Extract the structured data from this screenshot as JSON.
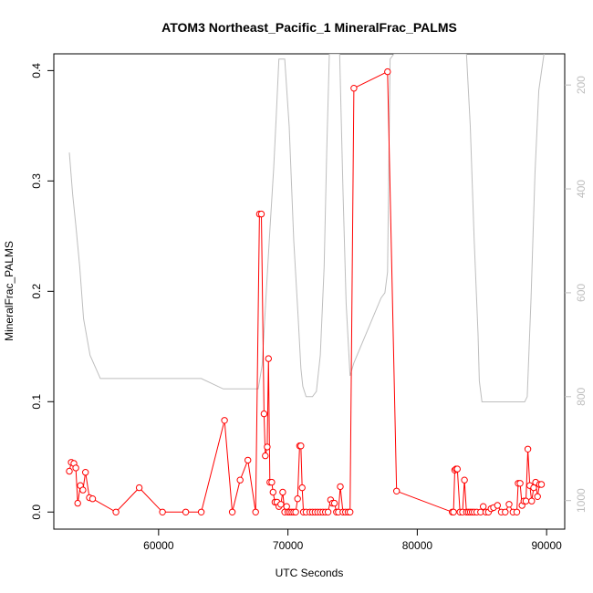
{
  "chart_data": {
    "type": "line",
    "title": "ATOM3 Northeast_Pacific_1 MineralFrac_PALMS",
    "xlabel": "UTC Seconds",
    "ylabel": "MineralFrac_PALMS",
    "xlim": [
      51900,
      91400
    ],
    "ylim": [
      -0.0155,
      0.4152
    ],
    "x_ticks": [
      60000,
      70000,
      80000,
      90000
    ],
    "y_ticks": [
      0.0,
      0.1,
      0.2,
      0.3,
      0.4
    ],
    "x_tick_labels": [
      "60000",
      "70000",
      "80000",
      "90000"
    ],
    "y_tick_labels": [
      "0.0",
      "0.1",
      "0.2",
      "0.3",
      "0.4"
    ],
    "secondary_axis": {
      "side": "right",
      "reversed": true,
      "lim": [
        1055,
        140
      ],
      "ticks": [
        200,
        400,
        600,
        800,
        1000
      ],
      "tick_labels": [
        "200",
        "400",
        "600",
        "800",
        "1000"
      ],
      "color": "#bebebe"
    },
    "grid": false,
    "series": [
      {
        "color": "#ff0000",
        "marker": "open-circle",
        "x": [
          53100,
          53250,
          53450,
          53600,
          53750,
          53950,
          54150,
          54350,
          54650,
          54900,
          56700,
          58500,
          60300,
          62100,
          63300,
          65100,
          65700,
          66300,
          66900,
          67500,
          67800,
          67950,
          68150,
          68250,
          68400,
          68500,
          68600,
          68750,
          68850,
          69000,
          69150,
          69300,
          69450,
          69600,
          69750,
          69900,
          70000,
          70150,
          70300,
          70450,
          70600,
          70750,
          70900,
          71000,
          71100,
          71200,
          71400,
          71700,
          71900,
          72100,
          72300,
          72500,
          72700,
          72900,
          73100,
          73300,
          73450,
          73600,
          73750,
          73900,
          74050,
          74250,
          74450,
          74650,
          74800,
          75100,
          77700,
          78400,
          82700,
          82800,
          82900,
          83000,
          83100,
          83300,
          83500,
          83650,
          83800,
          83950,
          84100,
          84250,
          84400,
          84600,
          84900,
          85100,
          85300,
          85500,
          85700,
          85900,
          86200,
          86500,
          86800,
          87100,
          87400,
          87700,
          87800,
          87950,
          88100,
          88250,
          88400,
          88550,
          88700,
          88850,
          89000,
          89150,
          89300,
          89450,
          89600
        ],
        "y": [
          0.037,
          0.045,
          0.044,
          0.04,
          0.008,
          0.024,
          0.02,
          0.036,
          0.013,
          0.012,
          0.0,
          0.022,
          0.0,
          0.0,
          0.0,
          0.083,
          0.0,
          0.029,
          0.047,
          0.0,
          0.27,
          0.27,
          0.089,
          0.051,
          0.059,
          0.139,
          0.027,
          0.027,
          0.018,
          0.009,
          0.009,
          0.005,
          0.007,
          0.018,
          0.0,
          0.005,
          0.0,
          0.0,
          0.0,
          0.0,
          0.0,
          0.012,
          0.06,
          0.06,
          0.022,
          0.0,
          0.0,
          0.0,
          0.0,
          0.0,
          0.0,
          0.0,
          0.0,
          0.0,
          0.0,
          0.011,
          0.008,
          0.008,
          0.0,
          0.0,
          0.023,
          0.0,
          0.0,
          0.0,
          0.0,
          0.384,
          0.399,
          0.019,
          0.0,
          0.0,
          0.038,
          0.039,
          0.039,
          0.0,
          0.0,
          0.029,
          0.0,
          0.0,
          0.0,
          0.0,
          0.0,
          0.0,
          0.0,
          0.005,
          0.0,
          0.0,
          0.003,
          0.004,
          0.006,
          0.0,
          0.0,
          0.007,
          0.0,
          0.0,
          0.026,
          0.026,
          0.006,
          0.01,
          0.01,
          0.057,
          0.024,
          0.01,
          0.022,
          0.027,
          0.014,
          0.025,
          0.025
        ]
      },
      {
        "color": "#bebebe",
        "marker": "none",
        "axis": "right",
        "x": [
          53100,
          53350,
          53600,
          53900,
          54200,
          54700,
          55500,
          58000,
          61000,
          63300,
          65000,
          66000,
          67000,
          67700,
          68000,
          68300,
          68600,
          68900,
          69100,
          69300,
          69400,
          69550,
          69750,
          70100,
          70450,
          70800,
          71000,
          71150,
          71400,
          71600,
          71900,
          72200,
          72500,
          72800,
          73000,
          73200,
          73400,
          73500,
          73600,
          73700,
          73800,
          73900,
          74000,
          74250,
          74500,
          74800,
          75100,
          77200,
          77500,
          77700,
          77900,
          78200,
          78600,
          82600,
          83000,
          83400,
          83800,
          84100,
          84400,
          84700,
          84800,
          85000,
          86500,
          87200,
          88000,
          88300,
          88500,
          88800,
          89100,
          89400,
          89800
        ],
        "y": [
          330,
          410,
          470,
          550,
          650,
          720,
          765,
          765,
          765,
          765,
          785,
          785,
          785,
          785,
          740,
          610,
          480,
          360,
          260,
          150,
          150,
          150,
          150,
          280,
          500,
          650,
          745,
          780,
          800,
          800,
          800,
          790,
          720,
          550,
          330,
          140,
          140,
          140,
          140,
          140,
          140,
          140,
          140,
          400,
          620,
          760,
          735,
          610,
          600,
          560,
          150,
          140,
          140,
          140,
          140,
          140,
          140,
          280,
          500,
          680,
          770,
          810,
          810,
          810,
          810,
          810,
          800,
          610,
          370,
          210,
          140
        ]
      }
    ]
  }
}
